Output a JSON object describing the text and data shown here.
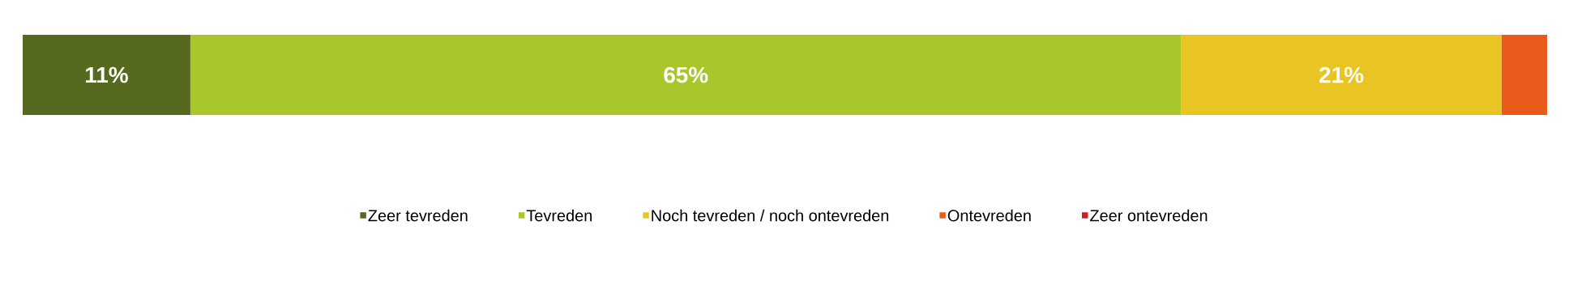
{
  "chart_data": {
    "type": "bar",
    "orientation": "horizontal",
    "stacked": true,
    "categories": [
      null
    ],
    "legend": "bottom",
    "tick_labels": false,
    "series": [
      {
        "name": "Zeer tevreden",
        "color": "#556a1e",
        "values": [
          11
        ],
        "value_labels": [
          "11%"
        ]
      },
      {
        "name": "Tevreden",
        "color": "#a9c72a",
        "values": [
          65
        ],
        "value_labels": [
          "65%"
        ]
      },
      {
        "name": "Noch tevreden / noch ontevreden",
        "color": "#e9c523",
        "values": [
          21
        ],
        "value_labels": [
          "21%"
        ]
      },
      {
        "name": "Ontevreden",
        "color": "#e85b1b",
        "values": [
          3
        ],
        "value_labels": [
          null
        ]
      },
      {
        "name": "Zeer ontevreden",
        "color": "#d71920",
        "values": [
          0
        ],
        "value_labels": [
          null
        ]
      }
    ]
  }
}
